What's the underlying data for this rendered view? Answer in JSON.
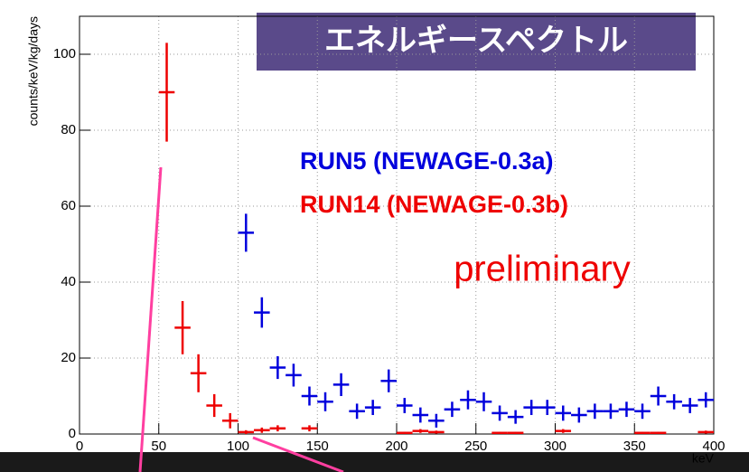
{
  "chart_data": {
    "type": "errorbar",
    "title": "エネルギースペクトル",
    "annotation": "preliminary",
    "x_label": "keV",
    "y_label": "counts/keV/kg/days",
    "xlim": [
      0,
      400
    ],
    "xticks": [
      0,
      50,
      100,
      150,
      200,
      250,
      300,
      350,
      400
    ],
    "ylim": [
      0,
      110
    ],
    "yticks": [
      0,
      20,
      40,
      60,
      80,
      100
    ],
    "grid": true,
    "series": [
      {
        "name": "RUN5 (NEWAGE-0.3a)",
        "color": "#0000dd",
        "xerr": 5,
        "x": [
          105,
          115,
          125,
          135,
          145,
          155,
          165,
          175,
          185,
          195,
          205,
          215,
          225,
          235,
          245,
          255,
          265,
          275,
          285,
          295,
          305,
          315,
          325,
          335,
          345,
          355,
          365,
          375,
          385,
          395
        ],
        "values": [
          53,
          32,
          17.5,
          15.5,
          10,
          8.5,
          13,
          6,
          7,
          14,
          7.5,
          5,
          3.5,
          6.5,
          9,
          8.5,
          5.5,
          4.5,
          7,
          7,
          5.5,
          5,
          6,
          6,
          6.5,
          6,
          10,
          8.5,
          7.5,
          9
        ],
        "errors": [
          5,
          4,
          3,
          3,
          2.5,
          2.5,
          3,
          2,
          2,
          3,
          2,
          2,
          1.8,
          2,
          2.5,
          2.5,
          2,
          1.8,
          2,
          2,
          2,
          2,
          2,
          2,
          2,
          2,
          2.5,
          2,
          2,
          2
        ]
      },
      {
        "name": "RUN14 (NEWAGE-0.3b)",
        "color": "#ee0000",
        "xerr": 5,
        "x": [
          55,
          65,
          75,
          85,
          95,
          105,
          115,
          125,
          145,
          205,
          215,
          225,
          265,
          275,
          305,
          355,
          365,
          395
        ],
        "values": [
          90,
          28,
          16,
          7.5,
          3.5,
          0.5,
          1,
          1.5,
          1.5,
          0.3,
          0.8,
          0.5,
          0.3,
          0.3,
          0.8,
          0.3,
          0.3,
          0.5
        ],
        "errors": [
          13,
          7,
          5,
          3,
          2,
          0.5,
          0.7,
          0.8,
          0.8,
          0.3,
          0.5,
          0.4,
          0.3,
          0.3,
          0.5,
          0.3,
          0.3,
          0.4
        ]
      }
    ]
  }
}
